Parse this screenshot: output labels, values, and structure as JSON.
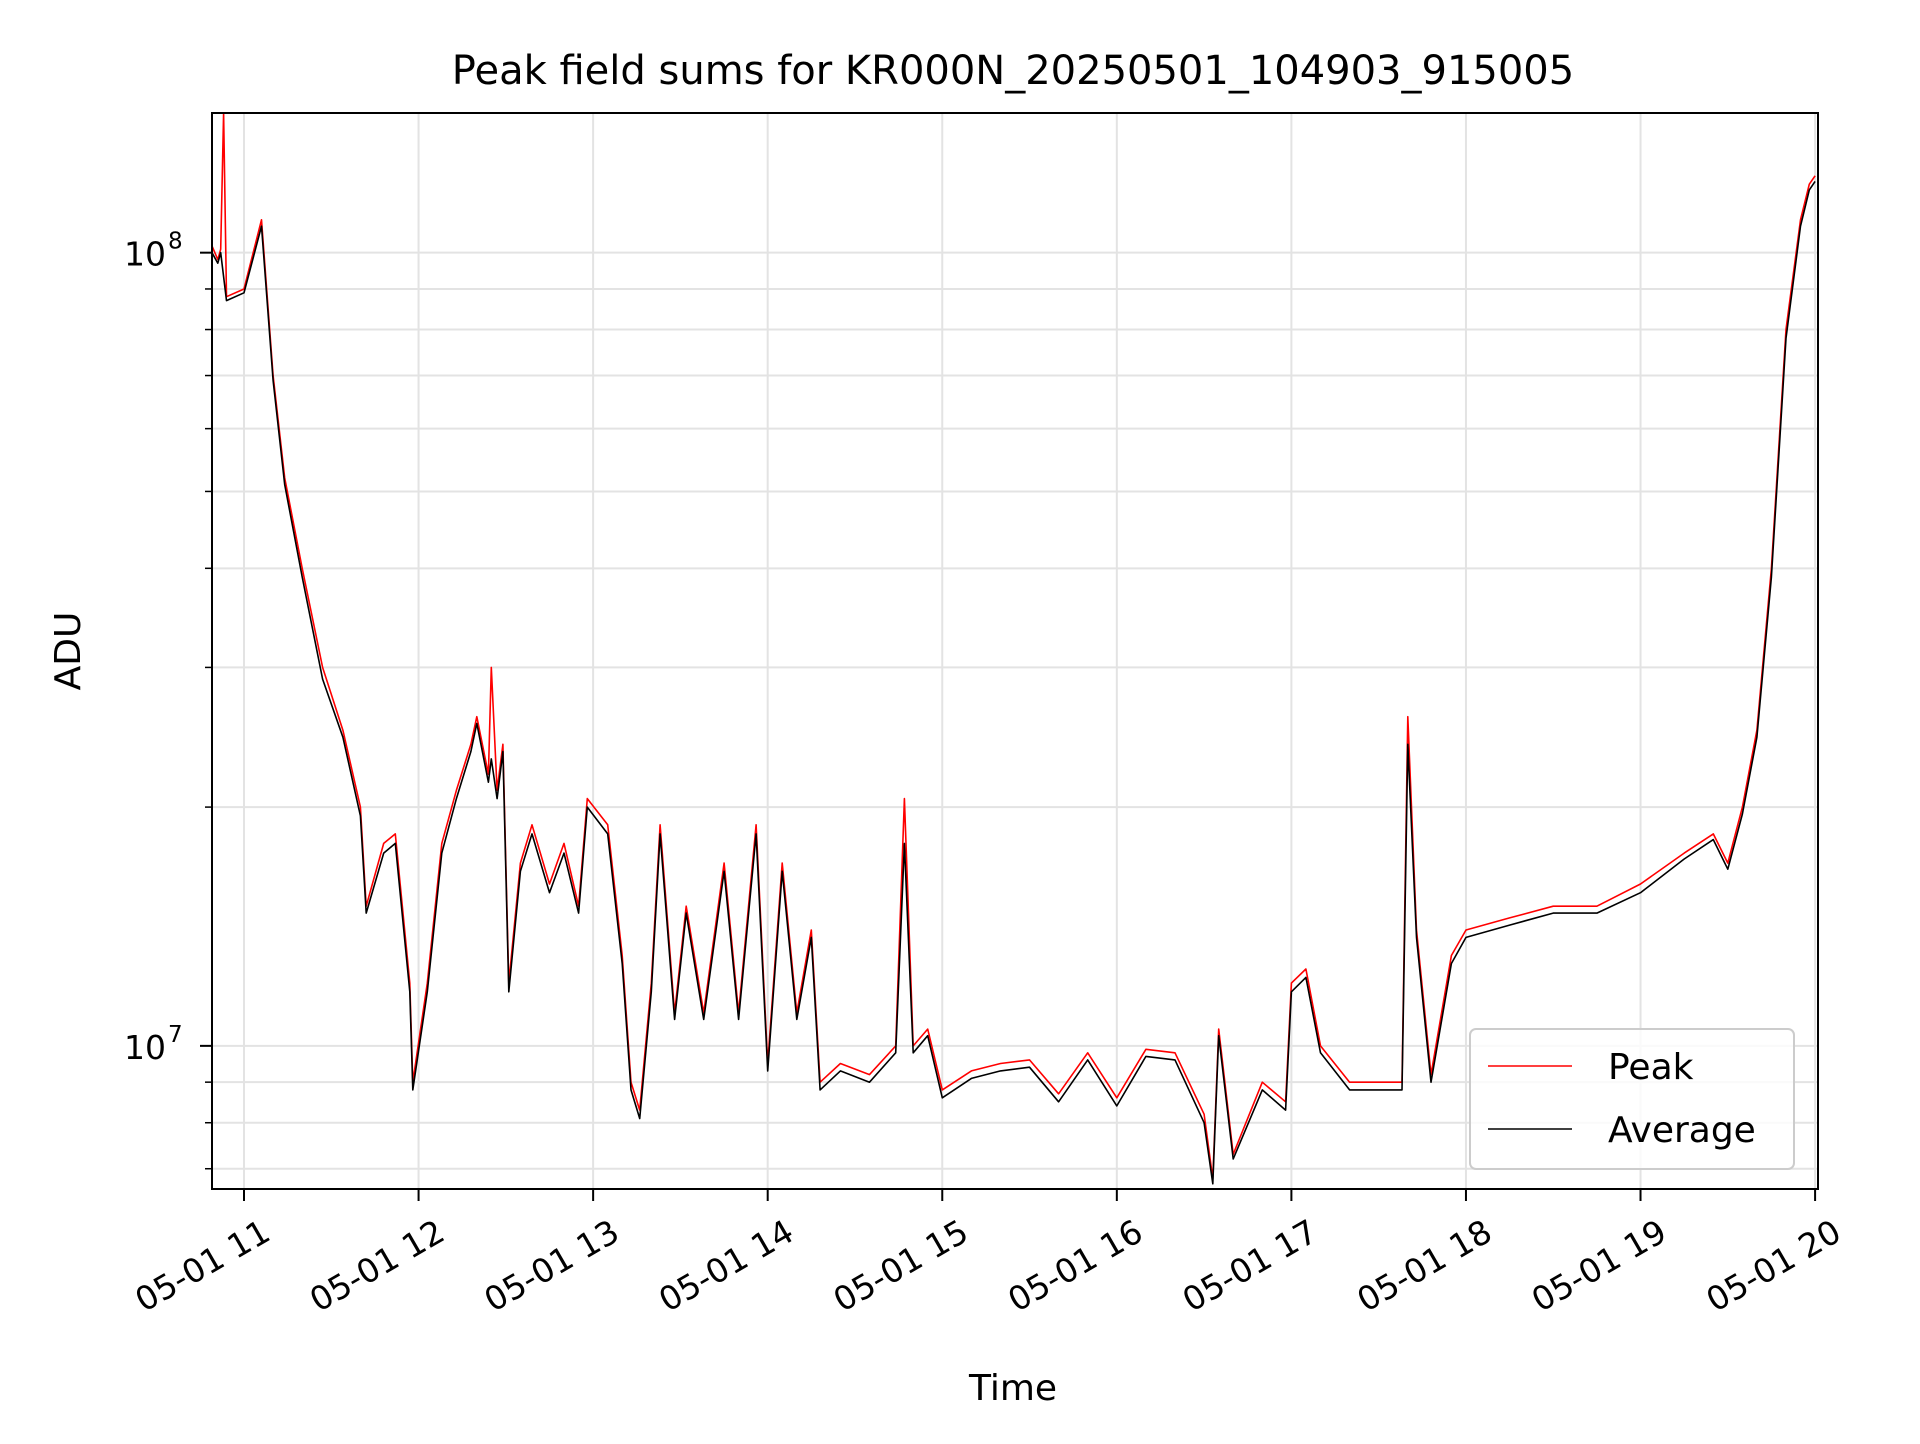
{
  "chart_data": {
    "type": "line",
    "title": "Peak field sums for KR000N_20250501_104903_915005",
    "xlabel": "Time",
    "ylabel": "ADU",
    "yscale": "log",
    "grid": true,
    "legend_position": "lower right",
    "xlim": [
      "2025-05-01 10:49",
      "2025-05-01 20:01"
    ],
    "ylim": [
      6600000,
      150000000
    ],
    "x_ticks": [
      {
        "t": "2025-05-01 11:00",
        "label": "05-01 11"
      },
      {
        "t": "2025-05-01 12:00",
        "label": "05-01 12"
      },
      {
        "t": "2025-05-01 13:00",
        "label": "05-01 13"
      },
      {
        "t": "2025-05-01 14:00",
        "label": "05-01 14"
      },
      {
        "t": "2025-05-01 15:00",
        "label": "05-01 15"
      },
      {
        "t": "2025-05-01 16:00",
        "label": "05-01 16"
      },
      {
        "t": "2025-05-01 17:00",
        "label": "05-01 17"
      },
      {
        "t": "2025-05-01 18:00",
        "label": "05-01 18"
      },
      {
        "t": "2025-05-01 19:00",
        "label": "05-01 19"
      },
      {
        "t": "2025-05-01 20:00",
        "label": "05-01 20"
      }
    ],
    "y_ticks": [
      {
        "value": 10000000,
        "base": "10",
        "exp": "7"
      },
      {
        "value": 100000000,
        "base": "10",
        "exp": "8"
      }
    ],
    "series": [
      {
        "name": "Peak",
        "color": "#ff0000",
        "points": [
          [
            "2025-05-01 10:49",
            102000000
          ],
          [
            "2025-05-01 10:51",
            98000000
          ],
          [
            "2025-05-01 10:52",
            101000000
          ],
          [
            "2025-05-01 10:53",
            150000000
          ],
          [
            "2025-05-01 10:54",
            88000000
          ],
          [
            "2025-05-01 11:00",
            90000000
          ],
          [
            "2025-05-01 11:06",
            110000000
          ],
          [
            "2025-05-01 11:10",
            70000000
          ],
          [
            "2025-05-01 11:14",
            52000000
          ],
          [
            "2025-05-01 11:20",
            40000000
          ],
          [
            "2025-05-01 11:27",
            30000000
          ],
          [
            "2025-05-01 11:34",
            25000000
          ],
          [
            "2025-05-01 11:40",
            20000000
          ],
          [
            "2025-05-01 11:42",
            15000000
          ],
          [
            "2025-05-01 11:48",
            18000000
          ],
          [
            "2025-05-01 11:52",
            18500000
          ],
          [
            "2025-05-01 11:57",
            12000000
          ],
          [
            "2025-05-01 11:58",
            9000000
          ],
          [
            "2025-05-01 12:03",
            12000000
          ],
          [
            "2025-05-01 12:08",
            18000000
          ],
          [
            "2025-05-01 12:13",
            21000000
          ],
          [
            "2025-05-01 12:18",
            24000000
          ],
          [
            "2025-05-01 12:20",
            26000000
          ],
          [
            "2025-05-01 12:24",
            22000000
          ],
          [
            "2025-05-01 12:25",
            30000000
          ],
          [
            "2025-05-01 12:27",
            21000000
          ],
          [
            "2025-05-01 12:29",
            24000000
          ],
          [
            "2025-05-01 12:31",
            12000000
          ],
          [
            "2025-05-01 12:35",
            17000000
          ],
          [
            "2025-05-01 12:39",
            19000000
          ],
          [
            "2025-05-01 12:45",
            16000000
          ],
          [
            "2025-05-01 12:50",
            18000000
          ],
          [
            "2025-05-01 12:55",
            15000000
          ],
          [
            "2025-05-01 12:58",
            20500000
          ],
          [
            "2025-05-01 13:05",
            19000000
          ],
          [
            "2025-05-01 13:10",
            13000000
          ],
          [
            "2025-05-01 13:13",
            9000000
          ],
          [
            "2025-05-01 13:16",
            8300000
          ],
          [
            "2025-05-01 13:20",
            12000000
          ],
          [
            "2025-05-01 13:23",
            19000000
          ],
          [
            "2025-05-01 13:28",
            11000000
          ],
          [
            "2025-05-01 13:32",
            15000000
          ],
          [
            "2025-05-01 13:38",
            11000000
          ],
          [
            "2025-05-01 13:45",
            17000000
          ],
          [
            "2025-05-01 13:50",
            11000000
          ],
          [
            "2025-05-01 13:56",
            19000000
          ],
          [
            "2025-05-01 14:00",
            9500000
          ],
          [
            "2025-05-01 14:05",
            17000000
          ],
          [
            "2025-05-01 14:10",
            11000000
          ],
          [
            "2025-05-01 14:15",
            14000000
          ],
          [
            "2025-05-01 14:18",
            9000000
          ],
          [
            "2025-05-01 14:25",
            9500000
          ],
          [
            "2025-05-01 14:35",
            9200000
          ],
          [
            "2025-05-01 14:44",
            10000000
          ],
          [
            "2025-05-01 14:47",
            20500000
          ],
          [
            "2025-05-01 14:50",
            10000000
          ],
          [
            "2025-05-01 14:55",
            10500000
          ],
          [
            "2025-05-01 15:00",
            8800000
          ],
          [
            "2025-05-01 15:10",
            9300000
          ],
          [
            "2025-05-01 15:20",
            9500000
          ],
          [
            "2025-05-01 15:30",
            9600000
          ],
          [
            "2025-05-01 15:40",
            8700000
          ],
          [
            "2025-05-01 15:50",
            9800000
          ],
          [
            "2025-05-01 16:00",
            8600000
          ],
          [
            "2025-05-01 16:10",
            9900000
          ],
          [
            "2025-05-01 16:20",
            9800000
          ],
          [
            "2025-05-01 16:30",
            8200000
          ],
          [
            "2025-05-01 16:33",
            6800000
          ],
          [
            "2025-05-01 16:35",
            10500000
          ],
          [
            "2025-05-01 16:40",
            7300000
          ],
          [
            "2025-05-01 16:50",
            9000000
          ],
          [
            "2025-05-01 16:58",
            8500000
          ],
          [
            "2025-05-01 17:00",
            12000000
          ],
          [
            "2025-05-01 17:05",
            12500000
          ],
          [
            "2025-05-01 17:10",
            10000000
          ],
          [
            "2025-05-01 17:20",
            9000000
          ],
          [
            "2025-05-01 17:30",
            9000000
          ],
          [
            "2025-05-01 17:38",
            9000000
          ],
          [
            "2025-05-01 17:40",
            26000000
          ],
          [
            "2025-05-01 17:43",
            14000000
          ],
          [
            "2025-05-01 17:48",
            9200000
          ],
          [
            "2025-05-01 17:55",
            13000000
          ],
          [
            "2025-05-01 18:00",
            14000000
          ],
          [
            "2025-05-01 18:15",
            14500000
          ],
          [
            "2025-05-01 18:30",
            15000000
          ],
          [
            "2025-05-01 18:45",
            15000000
          ],
          [
            "2025-05-01 19:00",
            16000000
          ],
          [
            "2025-05-01 19:15",
            17500000
          ],
          [
            "2025-05-01 19:25",
            18500000
          ],
          [
            "2025-05-01 19:30",
            17000000
          ],
          [
            "2025-05-01 19:35",
            20000000
          ],
          [
            "2025-05-01 19:40",
            25000000
          ],
          [
            "2025-05-01 19:45",
            40000000
          ],
          [
            "2025-05-01 19:50",
            80000000
          ],
          [
            "2025-05-01 19:55",
            110000000
          ],
          [
            "2025-05-01 19:58",
            122000000
          ],
          [
            "2025-05-01 20:00",
            125000000
          ]
        ]
      },
      {
        "name": "Average",
        "color": "#000000",
        "points": [
          [
            "2025-05-01 10:49",
            100000000
          ],
          [
            "2025-05-01 10:51",
            97000000
          ],
          [
            "2025-05-01 10:52",
            100000000
          ],
          [
            "2025-05-01 10:54",
            87000000
          ],
          [
            "2025-05-01 11:00",
            89000000
          ],
          [
            "2025-05-01 11:06",
            108000000
          ],
          [
            "2025-05-01 11:10",
            69000000
          ],
          [
            "2025-05-01 11:14",
            51000000
          ],
          [
            "2025-05-01 11:20",
            39000000
          ],
          [
            "2025-05-01 11:27",
            29000000
          ],
          [
            "2025-05-01 11:34",
            24500000
          ],
          [
            "2025-05-01 11:40",
            19500000
          ],
          [
            "2025-05-01 11:42",
            14700000
          ],
          [
            "2025-05-01 11:48",
            17500000
          ],
          [
            "2025-05-01 11:52",
            18000000
          ],
          [
            "2025-05-01 11:57",
            11700000
          ],
          [
            "2025-05-01 11:58",
            8800000
          ],
          [
            "2025-05-01 12:03",
            11700000
          ],
          [
            "2025-05-01 12:08",
            17500000
          ],
          [
            "2025-05-01 12:13",
            20500000
          ],
          [
            "2025-05-01 12:18",
            23500000
          ],
          [
            "2025-05-01 12:20",
            25500000
          ],
          [
            "2025-05-01 12:24",
            21500000
          ],
          [
            "2025-05-01 12:25",
            23000000
          ],
          [
            "2025-05-01 12:27",
            20500000
          ],
          [
            "2025-05-01 12:29",
            23500000
          ],
          [
            "2025-05-01 12:31",
            11700000
          ],
          [
            "2025-05-01 12:35",
            16600000
          ],
          [
            "2025-05-01 12:39",
            18500000
          ],
          [
            "2025-05-01 12:45",
            15600000
          ],
          [
            "2025-05-01 12:50",
            17500000
          ],
          [
            "2025-05-01 12:55",
            14700000
          ],
          [
            "2025-05-01 12:58",
            20000000
          ],
          [
            "2025-05-01 13:05",
            18500000
          ],
          [
            "2025-05-01 13:10",
            12700000
          ],
          [
            "2025-05-01 13:13",
            8800000
          ],
          [
            "2025-05-01 13:16",
            8100000
          ],
          [
            "2025-05-01 13:20",
            11700000
          ],
          [
            "2025-05-01 13:23",
            18500000
          ],
          [
            "2025-05-01 13:28",
            10800000
          ],
          [
            "2025-05-01 13:32",
            14700000
          ],
          [
            "2025-05-01 13:38",
            10800000
          ],
          [
            "2025-05-01 13:45",
            16600000
          ],
          [
            "2025-05-01 13:50",
            10800000
          ],
          [
            "2025-05-01 13:56",
            18500000
          ],
          [
            "2025-05-01 14:00",
            9300000
          ],
          [
            "2025-05-01 14:05",
            16600000
          ],
          [
            "2025-05-01 14:10",
            10800000
          ],
          [
            "2025-05-01 14:15",
            13700000
          ],
          [
            "2025-05-01 14:18",
            8800000
          ],
          [
            "2025-05-01 14:25",
            9300000
          ],
          [
            "2025-05-01 14:35",
            9000000
          ],
          [
            "2025-05-01 14:44",
            9800000
          ],
          [
            "2025-05-01 14:47",
            18000000
          ],
          [
            "2025-05-01 14:50",
            9800000
          ],
          [
            "2025-05-01 14:55",
            10300000
          ],
          [
            "2025-05-01 15:00",
            8600000
          ],
          [
            "2025-05-01 15:10",
            9100000
          ],
          [
            "2025-05-01 15:20",
            9300000
          ],
          [
            "2025-05-01 15:30",
            9400000
          ],
          [
            "2025-05-01 15:40",
            8500000
          ],
          [
            "2025-05-01 15:50",
            9600000
          ],
          [
            "2025-05-01 16:00",
            8400000
          ],
          [
            "2025-05-01 16:10",
            9700000
          ],
          [
            "2025-05-01 16:20",
            9600000
          ],
          [
            "2025-05-01 16:30",
            8000000
          ],
          [
            "2025-05-01 16:33",
            6700000
          ],
          [
            "2025-05-01 16:35",
            10300000
          ],
          [
            "2025-05-01 16:40",
            7200000
          ],
          [
            "2025-05-01 16:50",
            8800000
          ],
          [
            "2025-05-01 16:58",
            8300000
          ],
          [
            "2025-05-01 17:00",
            11700000
          ],
          [
            "2025-05-01 17:05",
            12200000
          ],
          [
            "2025-05-01 17:10",
            9800000
          ],
          [
            "2025-05-01 17:20",
            8800000
          ],
          [
            "2025-05-01 17:30",
            8800000
          ],
          [
            "2025-05-01 17:38",
            8800000
          ],
          [
            "2025-05-01 17:40",
            24000000
          ],
          [
            "2025-05-01 17:43",
            13700000
          ],
          [
            "2025-05-01 17:48",
            9000000
          ],
          [
            "2025-05-01 17:55",
            12700000
          ],
          [
            "2025-05-01 18:00",
            13700000
          ],
          [
            "2025-05-01 18:15",
            14200000
          ],
          [
            "2025-05-01 18:30",
            14700000
          ],
          [
            "2025-05-01 18:45",
            14700000
          ],
          [
            "2025-05-01 19:00",
            15600000
          ],
          [
            "2025-05-01 19:15",
            17200000
          ],
          [
            "2025-05-01 19:25",
            18200000
          ],
          [
            "2025-05-01 19:30",
            16700000
          ],
          [
            "2025-05-01 19:35",
            19600000
          ],
          [
            "2025-05-01 19:40",
            24500000
          ],
          [
            "2025-05-01 19:45",
            39000000
          ],
          [
            "2025-05-01 19:50",
            78000000
          ],
          [
            "2025-05-01 19:55",
            108000000
          ],
          [
            "2025-05-01 19:58",
            120000000
          ],
          [
            "2025-05-01 20:00",
            123000000
          ]
        ]
      }
    ]
  },
  "legend": [
    {
      "label": "Peak",
      "color": "#ff0000"
    },
    {
      "label": "Average",
      "color": "#000000"
    }
  ]
}
